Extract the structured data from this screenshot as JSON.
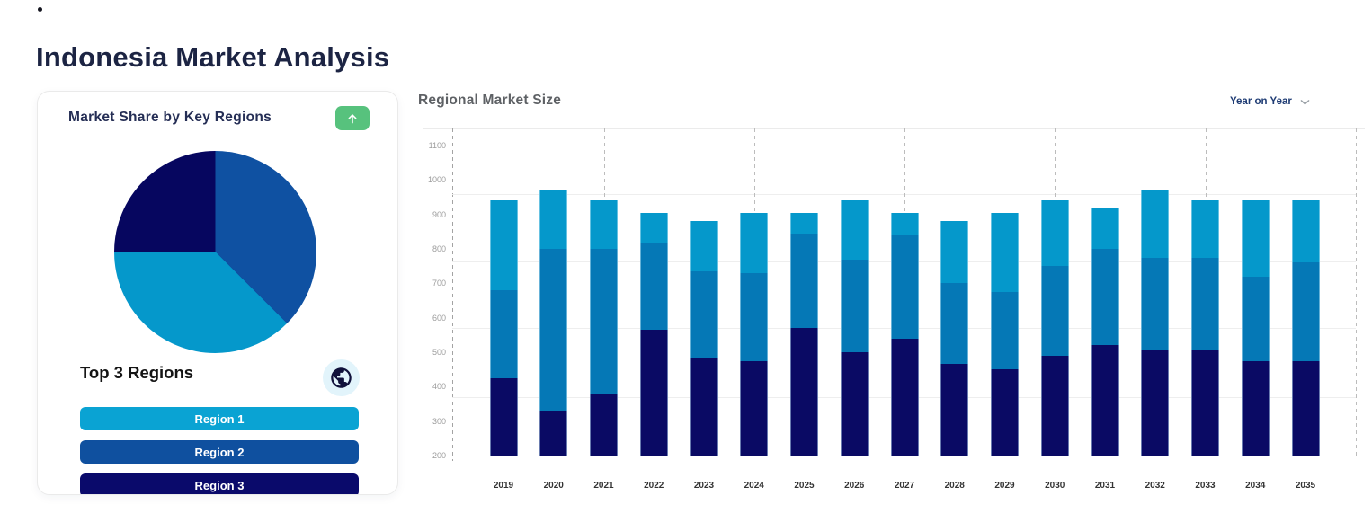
{
  "page": {
    "title": "Indonesia Market Analysis"
  },
  "share_card": {
    "title": "Market Share by Key Regions",
    "list_title": "Top 3 Regions",
    "accent_green": "#57C27D",
    "globe_bg": "#E2F4FB",
    "regions": [
      {
        "label": "Region 1",
        "color": "#0AA3D3"
      },
      {
        "label": "Region 2",
        "color": "#0F509F"
      },
      {
        "label": "Region 3",
        "color": "#0A0A6B"
      }
    ]
  },
  "regional_chart": {
    "title": "Regional Market Size",
    "dropdown": {
      "selected": "Year on Year"
    }
  },
  "chart_data": [
    {
      "type": "pie",
      "title": "Market Share by Key Regions",
      "start": "12-oclock-clockwise",
      "slices": [
        {
          "label": "Region 2",
          "value": 37.5,
          "color": "#0F51A2"
        },
        {
          "label": "Region 1",
          "value": 37.5,
          "color": "#0598CB"
        },
        {
          "label": "Region 3",
          "value": 25,
          "color": "#06065F"
        }
      ]
    },
    {
      "type": "bar",
      "stacked": true,
      "title": "Regional Market Size",
      "legend": "none",
      "categories": [
        "2019",
        "2020",
        "2021",
        "2022",
        "2023",
        "2024",
        "2025",
        "2026",
        "2027",
        "2028",
        "2029",
        "2030",
        "2031",
        "2032",
        "2033",
        "2034",
        "2035"
      ],
      "baseline": 200,
      "series": [
        {
          "name": "Region 3 (bottom)",
          "color": "#0A0A64",
          "cumulative_to": [
            425,
            330,
            380,
            565,
            485,
            475,
            570,
            500,
            540,
            465,
            450,
            490,
            520,
            505,
            505,
            475,
            475
          ]
        },
        {
          "name": "Region 2 (middle)",
          "color": "#0578B6",
          "cumulative_to": [
            680,
            800,
            800,
            815,
            735,
            730,
            845,
            770,
            840,
            700,
            675,
            750,
            800,
            775,
            775,
            720,
            760
          ]
        },
        {
          "name": "Region 1 (top)",
          "color": "#0598CB",
          "cumulative_to": [
            940,
            970,
            940,
            905,
            880,
            905,
            905,
            940,
            905,
            880,
            905,
            940,
            920,
            970,
            940,
            940,
            940
          ]
        }
      ],
      "ylim": [
        200,
        1150
      ],
      "yticks": [
        1100,
        1000,
        900,
        800,
        700,
        600,
        500,
        400,
        300,
        200
      ],
      "gridline_values": [
        960,
        765,
        570,
        370
      ],
      "dashed_guide_categories": [
        "2021",
        "2024",
        "2027",
        "2030",
        "2033"
      ]
    }
  ]
}
